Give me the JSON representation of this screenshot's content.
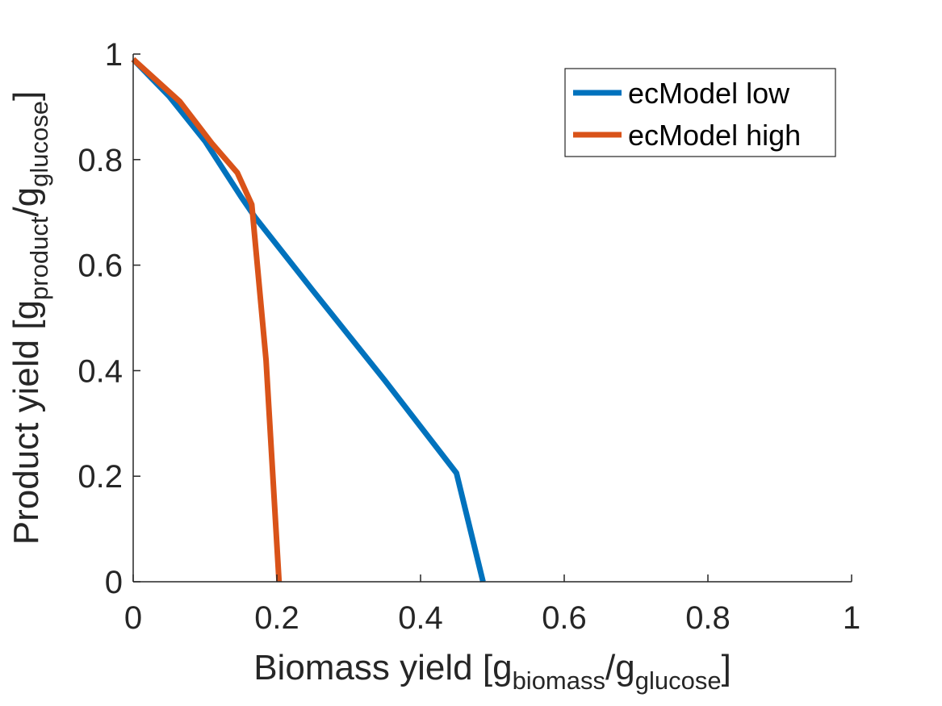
{
  "chart_data": {
    "type": "line",
    "xlabel": {
      "prefix": "Biomass yield [g",
      "sub1": "biomass",
      "middle": "/g",
      "sub2": "glucose",
      "suffix": "]"
    },
    "ylabel": {
      "prefix": "Product yield [g",
      "sub1": "product",
      "middle": "/g",
      "sub2": "glucose",
      "suffix": "]"
    },
    "xlim": [
      0,
      1
    ],
    "ylim": [
      0,
      1
    ],
    "xticks": [
      {
        "value": 0,
        "label": "0"
      },
      {
        "value": 0.2,
        "label": "0.2"
      },
      {
        "value": 0.4,
        "label": "0.4"
      },
      {
        "value": 0.6,
        "label": "0.6"
      },
      {
        "value": 0.8,
        "label": "0.8"
      },
      {
        "value": 1,
        "label": "1"
      }
    ],
    "yticks": [
      {
        "value": 0,
        "label": "0"
      },
      {
        "value": 0.2,
        "label": "0.2"
      },
      {
        "value": 0.4,
        "label": "0.4"
      },
      {
        "value": 0.6,
        "label": "0.6"
      },
      {
        "value": 0.8,
        "label": "0.8"
      },
      {
        "value": 1,
        "label": "1"
      }
    ],
    "grid": false,
    "legend_position": "top-right",
    "series": [
      {
        "name": "ecModel low",
        "color": "#0072BD",
        "x": [
          0,
          0.05,
          0.1,
          0.15,
          0.17,
          0.25,
          0.35,
          0.45,
          0.487
        ],
        "y": [
          0.99,
          0.92,
          0.835,
          0.73,
          0.69,
          0.552,
          0.382,
          0.206,
          0
        ],
        "points": [
          [
            0,
            0.99
          ],
          [
            0.05,
            0.92
          ],
          [
            0.1,
            0.835
          ],
          [
            0.15,
            0.73
          ],
          [
            0.17,
            0.69
          ],
          [
            0.25,
            0.552
          ],
          [
            0.35,
            0.382
          ],
          [
            0.45,
            0.206
          ],
          [
            0.487,
            0
          ]
        ]
      },
      {
        "name": "ecModel high",
        "color": "#D95319",
        "x": [
          0,
          0.065,
          0.11,
          0.145,
          0.165,
          0.185,
          0.203
        ],
        "y": [
          0.99,
          0.91,
          0.83,
          0.775,
          0.715,
          0.42,
          0
        ],
        "points": [
          [
            0,
            0.99
          ],
          [
            0.065,
            0.91
          ],
          [
            0.11,
            0.83
          ],
          [
            0.145,
            0.775
          ],
          [
            0.165,
            0.715
          ],
          [
            0.185,
            0.42
          ],
          [
            0.203,
            0
          ]
        ]
      }
    ]
  }
}
